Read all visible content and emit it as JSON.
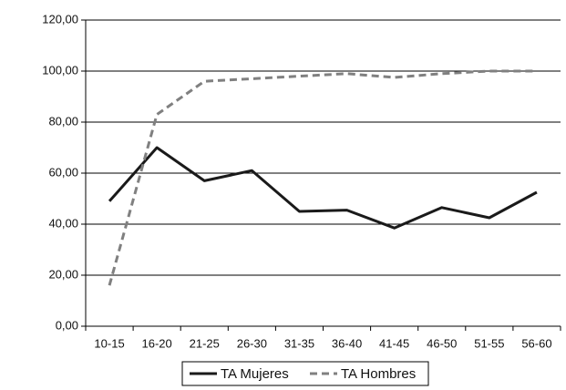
{
  "chart_data": {
    "type": "line",
    "categories": [
      "10-15",
      "16-20",
      "21-25",
      "26-30",
      "31-35",
      "36-40",
      "41-45",
      "46-50",
      "51-55",
      "56-60"
    ],
    "series": [
      {
        "name": "TA Mujeres",
        "color": "#1a1a1a",
        "dash": false,
        "values": [
          49,
          70,
          57,
          61,
          45,
          45.5,
          38.5,
          46.5,
          42.5,
          52.5
        ]
      },
      {
        "name": "TA Hombres",
        "color": "#808080",
        "dash": true,
        "values": [
          16,
          83,
          96,
          97,
          98,
          99,
          97.5,
          99,
          100,
          100
        ]
      }
    ],
    "ylim": [
      0,
      120
    ],
    "yticks": [
      {
        "value": 0,
        "label": "0,00"
      },
      {
        "value": 20,
        "label": "20,00"
      },
      {
        "value": 40,
        "label": "40,00"
      },
      {
        "value": 60,
        "label": "60,00"
      },
      {
        "value": 80,
        "label": "80,00"
      },
      {
        "value": 100,
        "label": "100,00"
      },
      {
        "value": 120,
        "label": "120,00"
      }
    ],
    "grid": true,
    "legend": "bottom"
  }
}
